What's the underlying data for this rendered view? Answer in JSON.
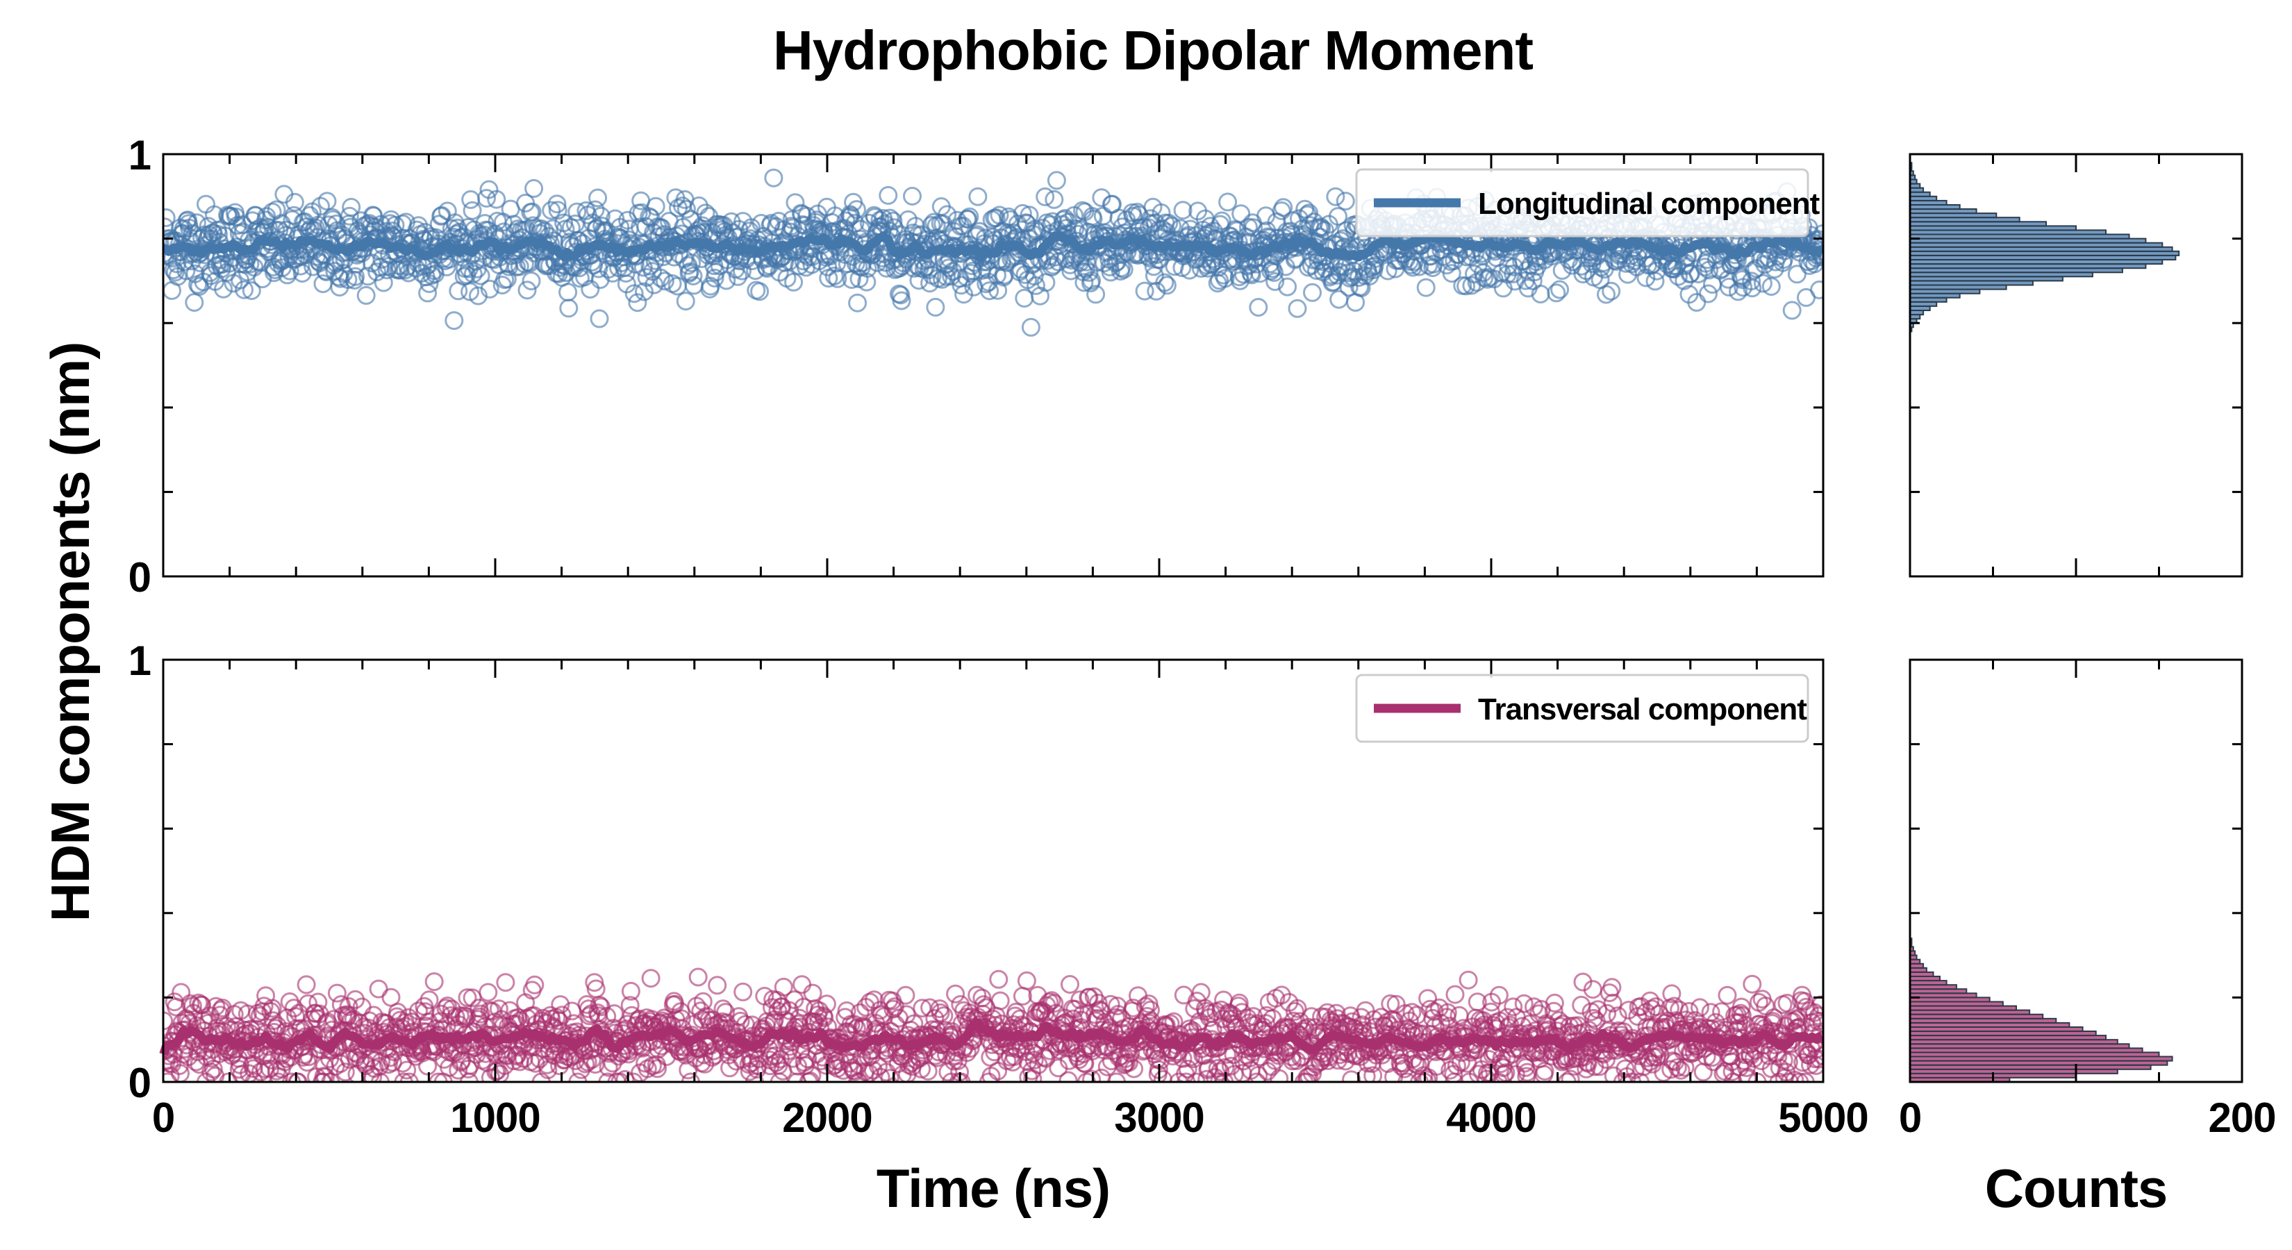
{
  "figure": {
    "title": "Hydrophobic Dipolar Moment",
    "ylabel": "HDM components (nm)",
    "time_xlabel": "Time (ns)",
    "hist_xlabel": "Counts"
  },
  "colors": {
    "longitudinal": "#4477aa",
    "transversal": "#a8306e",
    "hist_edge": "#2b3a4a"
  },
  "chart_data": [
    {
      "type": "scatter",
      "panel": "top-time-series",
      "title": "",
      "xlabel": "",
      "ylabel": "HDM components (nm)",
      "xlim": [
        0,
        5000
      ],
      "ylim": [
        0,
        1
      ],
      "xticks": [
        0,
        1000,
        2000,
        3000,
        4000,
        5000
      ],
      "xtick_labels": [],
      "yticks": [
        0,
        1
      ],
      "ytick_labels": [
        "0",
        "1"
      ],
      "legend": {
        "placement": "upper-right",
        "entries": [
          "Longitudinal component"
        ]
      },
      "series": [
        {
          "name": "Longitudinal component",
          "color": "#4477aa",
          "marker": "open-circle",
          "mean": 0.78,
          "spread": 0.05,
          "min_observed": 0.59,
          "max_observed": 1.0,
          "running_mean_line": true,
          "n_points": 2000
        }
      ]
    },
    {
      "type": "scatter",
      "panel": "bottom-time-series",
      "title": "",
      "xlabel": "Time (ns)",
      "ylabel": "",
      "xlim": [
        0,
        5000
      ],
      "ylim": [
        0,
        1
      ],
      "xticks": [
        0,
        1000,
        2000,
        3000,
        4000,
        5000
      ],
      "xtick_labels": [
        "0",
        "1000",
        "2000",
        "3000",
        "4000",
        "5000"
      ],
      "yticks": [
        0,
        1
      ],
      "ytick_labels": [
        "0",
        "1"
      ],
      "legend": {
        "placement": "upper-right",
        "entries": [
          "Transversal component"
        ]
      },
      "series": [
        {
          "name": "Transversal component",
          "color": "#a8306e",
          "marker": "open-circle",
          "mean": 0.1,
          "spread": 0.05,
          "min_observed": 0.0,
          "max_observed": 0.33,
          "running_mean_line": true,
          "n_points": 2000
        }
      ]
    },
    {
      "type": "bar",
      "orientation": "horizontal",
      "panel": "top-histogram",
      "xlabel": "",
      "xlim": [
        0,
        200
      ],
      "ylim": [
        0,
        1
      ],
      "bin_width": 0.01,
      "bin_starts": [
        0.58,
        0.59,
        0.6,
        0.61,
        0.62,
        0.63,
        0.64,
        0.65,
        0.66,
        0.67,
        0.68,
        0.69,
        0.7,
        0.71,
        0.72,
        0.73,
        0.74,
        0.75,
        0.76,
        0.77,
        0.78,
        0.79,
        0.8,
        0.81,
        0.82,
        0.83,
        0.84,
        0.85,
        0.86,
        0.87,
        0.88,
        0.89,
        0.9,
        0.91,
        0.92,
        0.93,
        0.94,
        0.95,
        0.96,
        0.97
      ],
      "counts": [
        1,
        2,
        4,
        6,
        8,
        12,
        16,
        22,
        30,
        42,
        58,
        74,
        92,
        110,
        128,
        142,
        152,
        160,
        162,
        158,
        152,
        142,
        132,
        118,
        100,
        82,
        66,
        52,
        40,
        30,
        22,
        16,
        12,
        8,
        6,
        4,
        3,
        2,
        1,
        1
      ]
    },
    {
      "type": "bar",
      "orientation": "horizontal",
      "panel": "bottom-histogram",
      "xlabel": "Counts",
      "xlim": [
        0,
        200
      ],
      "xticks": [
        0,
        200
      ],
      "xtick_labels": [
        "0",
        "200"
      ],
      "ylim": [
        0,
        1
      ],
      "bin_width": 0.01,
      "bin_starts": [
        0.0,
        0.01,
        0.02,
        0.03,
        0.04,
        0.05,
        0.06,
        0.07,
        0.08,
        0.09,
        0.1,
        0.11,
        0.12,
        0.13,
        0.14,
        0.15,
        0.16,
        0.17,
        0.18,
        0.19,
        0.2,
        0.21,
        0.22,
        0.23,
        0.24,
        0.25,
        0.26,
        0.27,
        0.28,
        0.29,
        0.3,
        0.31,
        0.32,
        0.33
      ],
      "counts": [
        60,
        100,
        125,
        145,
        155,
        158,
        150,
        140,
        132,
        125,
        118,
        112,
        104,
        96,
        88,
        80,
        72,
        64,
        56,
        48,
        40,
        34,
        28,
        22,
        18,
        14,
        10,
        8,
        6,
        4,
        3,
        2,
        1,
        1
      ]
    }
  ]
}
